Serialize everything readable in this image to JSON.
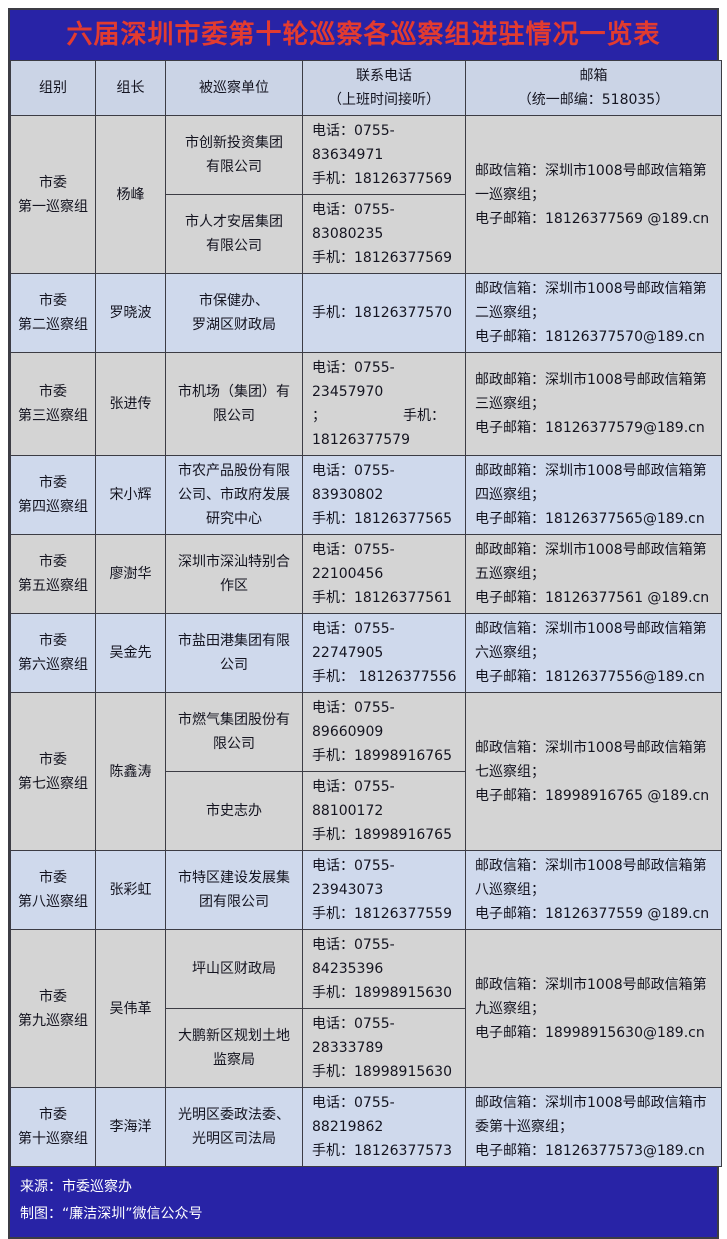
{
  "title": "六届深圳市委第十轮巡察各巡察组进驻情况一览表",
  "header": {
    "group": "组别",
    "leader": "组长",
    "unit": "被巡察单位",
    "phone": "联系电话\n（上班时间接听）",
    "mail": "邮箱\n（统一邮编：518035）"
  },
  "rows": [
    {
      "shade": "gray",
      "group": "市委\n第一巡察组",
      "leader": "杨峰",
      "subrows": [
        {
          "unit": "市创新投资集团\n有限公司",
          "phone": "电话：0755-83634971\n手机：18126377569"
        },
        {
          "unit": "市人才安居集团\n有限公司",
          "phone": "电话：0755-83080235\n手机：18126377569"
        }
      ],
      "mail": "邮政信箱：深圳市1008号邮政信箱第一巡察组；\n电子邮箱：18126377569 @189.cn"
    },
    {
      "shade": "blue",
      "group": "市委\n第二巡察组",
      "leader": "罗晓波",
      "subrows": [
        {
          "unit": "市保健办、\n罗湖区财政局",
          "phone": "手机：18126377570"
        }
      ],
      "mail": "邮政信箱：深圳市1008号邮政信箱第二巡察组；\n电子邮箱：18126377570@189.cn"
    },
    {
      "shade": "gray",
      "group": "市委\n第三巡察组",
      "leader": "张进传",
      "subrows": [
        {
          "unit": "市机场（集团）有\n限公司",
          "phone": "电话：0755-23457970\n；　　　　　　手机：\n18126377579"
        }
      ],
      "mail": "邮政邮箱：深圳市1008号邮政信箱第三巡察组；\n电子邮箱：18126377579@189.cn"
    },
    {
      "shade": "blue",
      "group": "市委\n第四巡察组",
      "leader": "宋小辉",
      "subrows": [
        {
          "unit": "市农产品股份有限\n公司、市政府发展\n研究中心",
          "phone": "电话：0755-83930802\n手机：18126377565"
        }
      ],
      "mail": "邮政邮箱：深圳市1008号邮政信箱第四巡察组；\n电子邮箱：18126377565@189.cn"
    },
    {
      "shade": "gray",
      "group": "市委\n第五巡察组",
      "leader": "廖澍华",
      "subrows": [
        {
          "unit": "深圳市深汕特别合\n作区",
          "phone": "电话：0755-22100456\n手机：18126377561"
        }
      ],
      "mail": "邮政邮箱：深圳市1008号邮政信箱第五巡察组；\n电子邮箱：18126377561 @189.cn"
    },
    {
      "shade": "blue",
      "group": "市委\n第六巡察组",
      "leader": "吴金先",
      "subrows": [
        {
          "unit": "市盐田港集团有限\n公司",
          "phone": "电话：0755-22747905\n手机： 18126377556"
        }
      ],
      "mail": "邮政信箱：深圳市1008号邮政信箱第六巡察组；\n电子邮箱：18126377556@189.cn"
    },
    {
      "shade": "gray",
      "group": "市委\n第七巡察组",
      "leader": "陈鑫涛",
      "subrows": [
        {
          "unit": "市燃气集团股份有\n限公司",
          "phone": "电话：0755-89660909\n手机：18998916765"
        },
        {
          "unit": "市史志办",
          "phone": "电话：0755-88100172\n手机：18998916765"
        }
      ],
      "mail": "邮政信箱：深圳市1008号邮政信箱第七巡察组；\n电子邮箱：18998916765 @189.cn"
    },
    {
      "shade": "blue",
      "group": "市委\n第八巡察组",
      "leader": "张彩虹",
      "subrows": [
        {
          "unit": "市特区建设发展集\n团有限公司",
          "phone": "电话：0755-23943073\n手机：18126377559"
        }
      ],
      "mail": "邮政信箱：深圳市1008号邮政信箱第八巡察组；\n电子邮箱：18126377559 @189.cn"
    },
    {
      "shade": "gray",
      "group": "市委\n第九巡察组",
      "leader": "吴伟革",
      "subrows": [
        {
          "unit": "坪山区财政局",
          "phone": "电话：0755-84235396\n手机：18998915630"
        },
        {
          "unit": "大鹏新区规划土地\n监察局",
          "phone": "电话：0755-28333789\n手机：18998915630"
        }
      ],
      "mail": "邮政信箱：深圳市1008号邮政信箱第九巡察组；\n电子邮箱：18998915630@189.cn"
    },
    {
      "shade": "blue",
      "group": "市委\n第十巡察组",
      "leader": "李海洋",
      "subrows": [
        {
          "unit": "光明区委政法委、\n光明区司法局",
          "phone": "电话：0755-88219862\n手机：18126377573"
        }
      ],
      "mail": "邮政信箱：深圳市1008号邮政信箱市委第十巡察组；\n电子邮箱：18126377573@189.cn"
    }
  ],
  "footer": {
    "source": "来源：市委巡察办",
    "credit": "制图：“廉洁深圳”微信公众号"
  },
  "colors": {
    "band_blue": "#2823a6",
    "title_red": "#e23b30",
    "header_bg": "#cbd4e6",
    "row_blue": "#cfd9ec",
    "row_gray": "#d4d4d4",
    "border": "#3c3c44"
  }
}
